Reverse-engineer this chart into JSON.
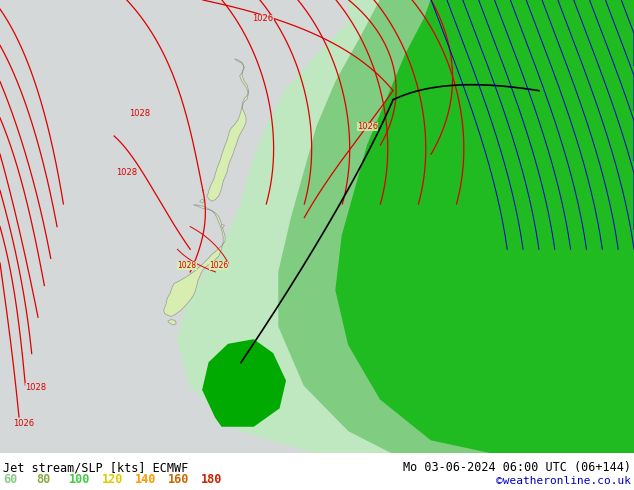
{
  "title_left": "Jet stream/SLP [kts] ECMWF",
  "title_right": "Mo 03-06-2024 06:00 UTC (06+144)",
  "credit": "©weatheronline.co.uk",
  "legend_values": [
    "60",
    "80",
    "100",
    "120",
    "140",
    "160",
    "180"
  ],
  "legend_colors_list": [
    "#88cc88",
    "#88aa44",
    "#44cc44",
    "#ddcc00",
    "#ff9900",
    "#cc6600",
    "#cc2200"
  ],
  "bg_color": "#d4d8d8",
  "slp_color": "#dd0000",
  "fig_width": 6.34,
  "fig_height": 4.9,
  "dpi": 100,
  "credit_color": "#0000cc",
  "jet_light_green": "#c0e8c0",
  "jet_mid_green": "#80cc80",
  "jet_dark_green": "#20bb20",
  "jet_bright_green": "#00aa00",
  "nz_land_color": "#d8edb0",
  "nz_edge_color": "#999999"
}
